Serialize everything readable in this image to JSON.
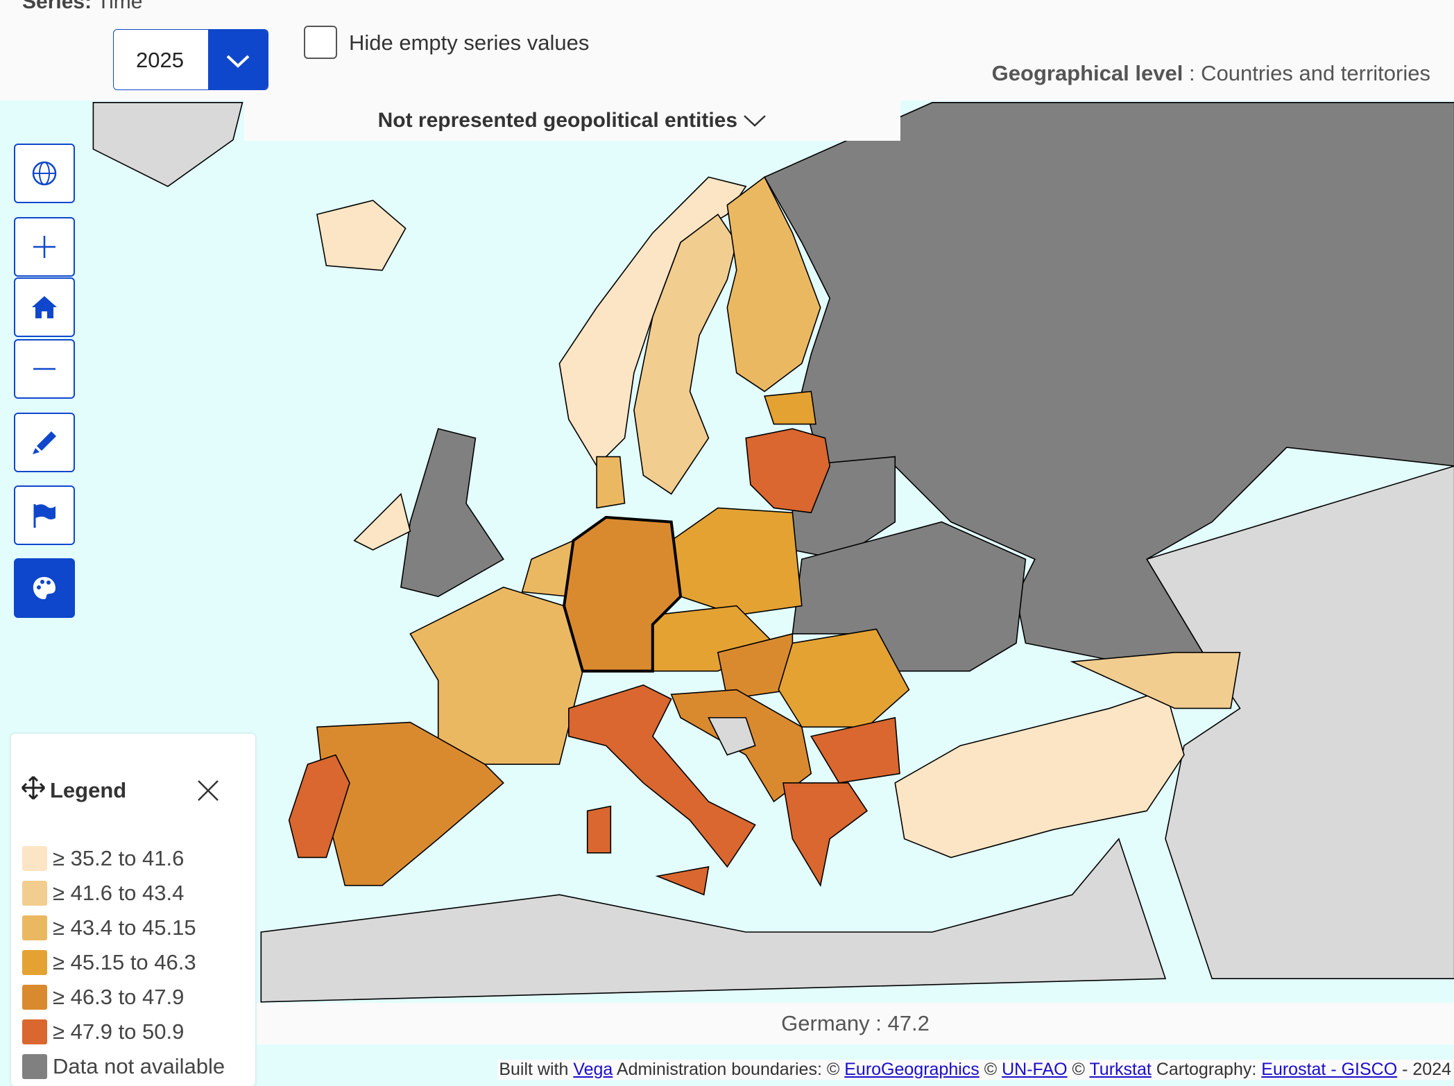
{
  "header": {
    "series_label": "Series:",
    "series_value": "Time",
    "year": "2025",
    "hide_empty": "Hide empty series values",
    "geo_level_label": "Geographical level",
    "geo_level_value": ": Countries and territories"
  },
  "not_represented": "Not represented geopolitical entities",
  "legend": {
    "title": "Legend",
    "items": [
      {
        "label": "≥ 35.2 to 41.6",
        "color": "#fce5c5"
      },
      {
        "label": "≥ 41.6 to 43.4",
        "color": "#f1cd90"
      },
      {
        "label": "≥ 43.4 to 45.15",
        "color": "#ebb862"
      },
      {
        "label": "≥ 45.15 to 46.3",
        "color": "#e4a233"
      },
      {
        "label": "≥ 46.3 to 47.9",
        "color": "#da8a2e"
      },
      {
        "label": "≥ 47.9 to 50.9",
        "color": "#d9672f"
      },
      {
        "label": "Data not available",
        "color": "#808080"
      }
    ]
  },
  "tooltip": "Germany : 47.2",
  "attribution": [
    {
      "text": "Built with"
    },
    {
      "text": "Vega",
      "link": true
    },
    {
      "text": "Administration boundaries: ©"
    },
    {
      "text": "EuroGeographics",
      "link": true
    },
    {
      "text": "©"
    },
    {
      "text": "UN-FAO",
      "link": true
    },
    {
      "text": "©"
    },
    {
      "text": "Turkstat",
      "link": true
    },
    {
      "text": "Cartography:"
    },
    {
      "text": "Eurostat - GISCO",
      "link": true
    },
    {
      "text": "- 2024"
    }
  ]
}
